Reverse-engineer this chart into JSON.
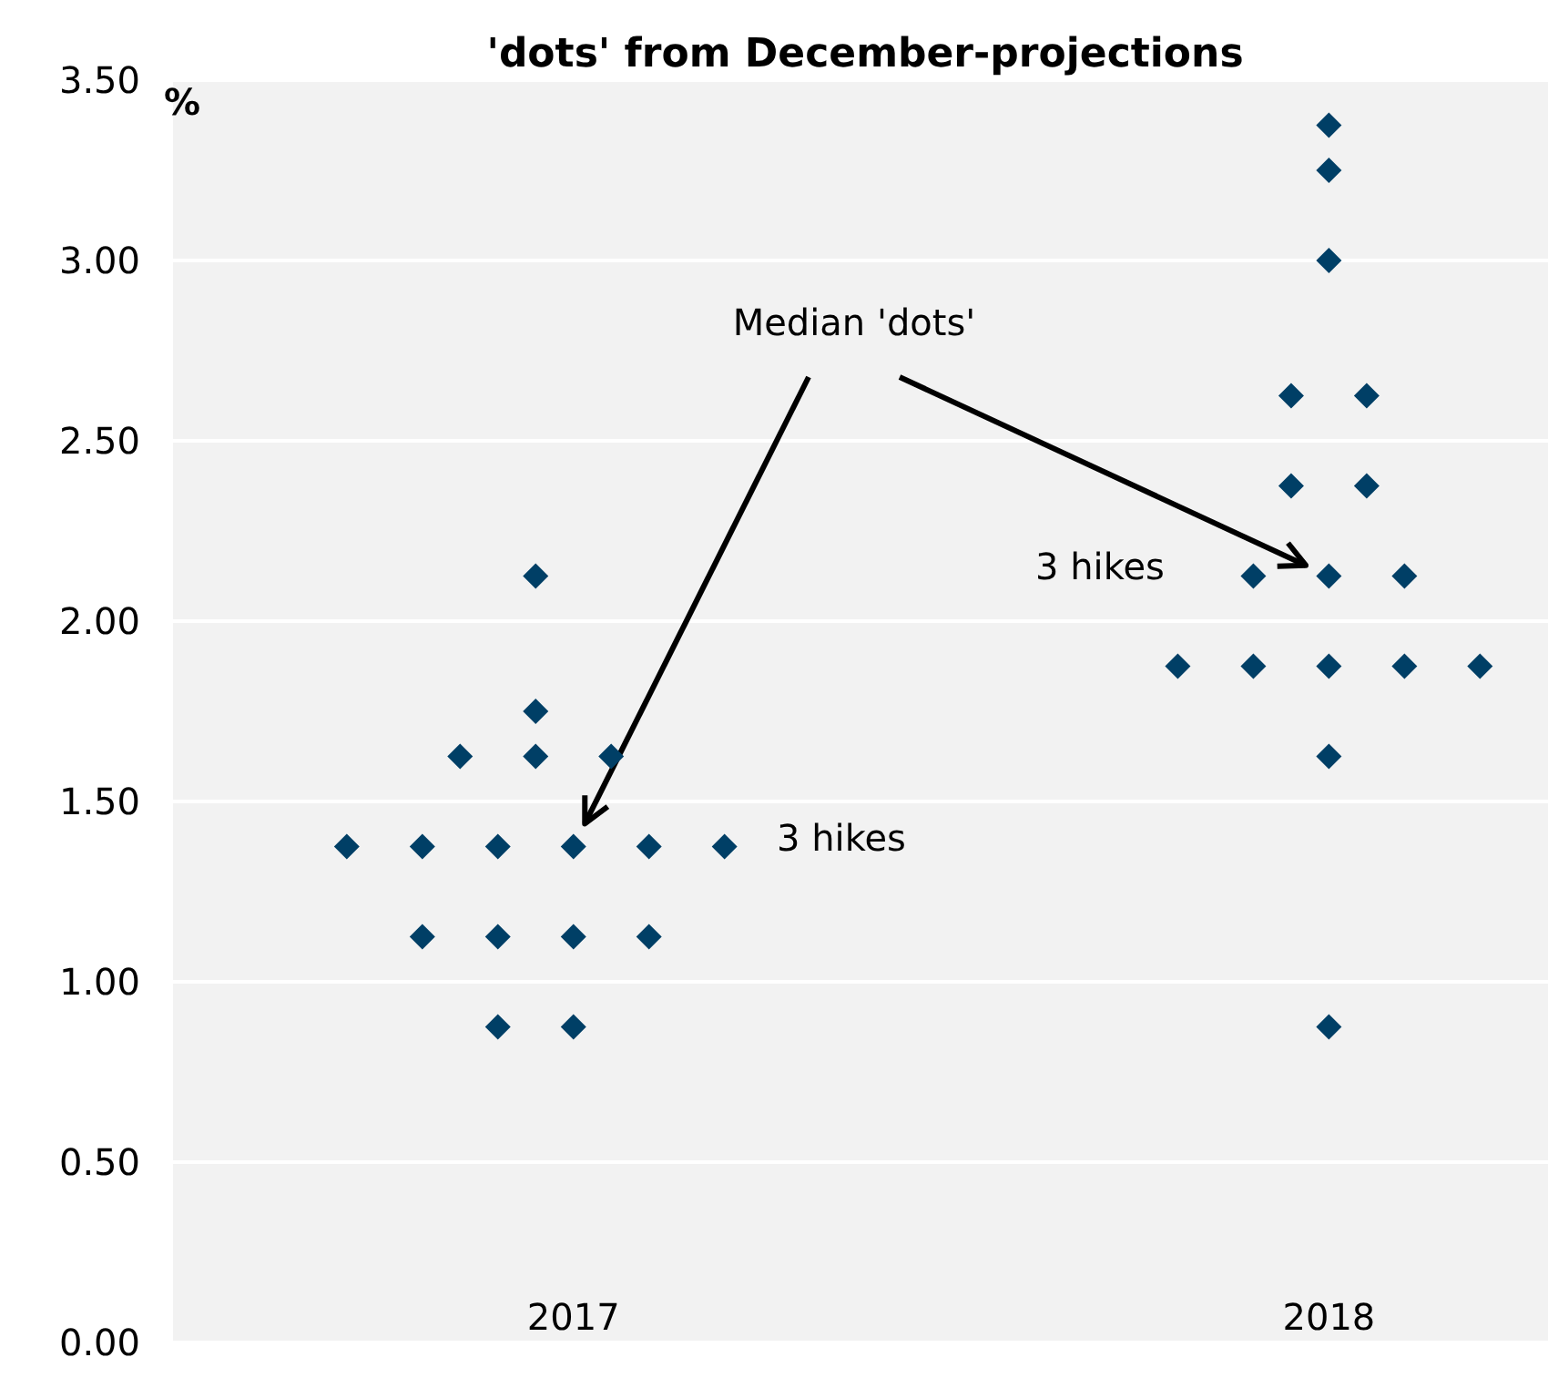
{
  "chart_data": {
    "type": "scatter",
    "title": "'dots' from December-projections",
    "ylabel": "%",
    "series": [
      {
        "color": "#003f66",
        "x": [
          2016.7,
          2016.8,
          2016.9,
          2017.0,
          2017.1,
          2017.2,
          2016.8,
          2016.9,
          2017.0,
          2017.1,
          2016.9,
          2017.0,
          2016.85,
          2016.95,
          2017.05,
          2016.95,
          2016.95,
          2018.0,
          2018.0,
          2018.0,
          2017.95,
          2018.05,
          2017.95,
          2018.05,
          2017.9,
          2018.0,
          2018.1,
          2017.8,
          2017.9,
          2018.0,
          2018.1,
          2018.2,
          2018.0,
          2018.0
        ],
        "values": [
          1.375,
          1.375,
          1.375,
          1.375,
          1.375,
          1.375,
          1.125,
          1.125,
          1.125,
          1.125,
          0.875,
          0.875,
          1.625,
          1.625,
          1.625,
          1.75,
          2.125,
          3.375,
          3.25,
          3.0,
          2.625,
          2.625,
          2.375,
          2.375,
          2.125,
          2.125,
          2.125,
          1.875,
          1.875,
          1.875,
          1.875,
          1.875,
          1.625,
          0.875
        ]
      }
    ],
    "xlim": [
      2016.47,
      2018.29
    ],
    "xticks": [
      2017,
      2018
    ],
    "ylim": [
      0,
      3.5
    ],
    "yticks": [
      {
        "value": 0,
        "label": "0.00"
      },
      {
        "value": 0.5,
        "label": "0.50"
      },
      {
        "value": 1,
        "label": "1.00"
      },
      {
        "value": 1.5,
        "label": "1.50"
      },
      {
        "value": 2,
        "label": "2.00"
      },
      {
        "value": 2.5,
        "label": "2.50"
      },
      {
        "value": 3,
        "label": "3.00"
      },
      {
        "value": 3.5,
        "label": "3.50"
      }
    ],
    "grid": "y",
    "marker": "diamond",
    "annotations": [
      "Median 'dots'",
      "3 hikes",
      "3 hikes"
    ]
  }
}
